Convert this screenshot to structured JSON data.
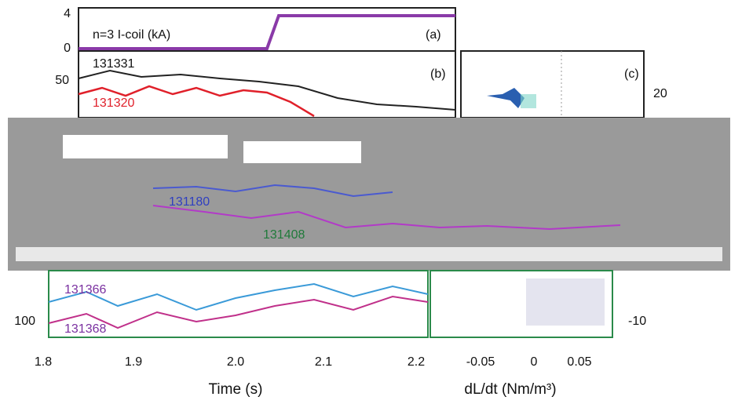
{
  "panel_a": {
    "y_ticks": [
      "4",
      "0"
    ],
    "label": "n=3 I-coil (kA)",
    "tag": "(a)"
  },
  "panel_b": {
    "y_ticks": [
      "50"
    ],
    "shots": [
      "131331",
      "131320"
    ],
    "tag": "(b)"
  },
  "panel_c": {
    "tag": "(c)",
    "y_ticks": [
      "20"
    ]
  },
  "middle": {
    "shots": [
      "131180",
      "131408"
    ]
  },
  "panel_d": {
    "y_ticks": [
      "100"
    ],
    "shots": [
      "131366",
      "131368"
    ]
  },
  "panel_e": {
    "y_ticks": [
      "-10"
    ]
  },
  "x_axis_left": {
    "ticks": [
      "1.8",
      "1.9",
      "2.0",
      "2.1",
      "2.2"
    ],
    "label": "Time (s)"
  },
  "x_axis_right": {
    "ticks": [
      "-0.05",
      "0",
      "0.05"
    ],
    "label": "dL/dt (Nm/m³)"
  }
}
